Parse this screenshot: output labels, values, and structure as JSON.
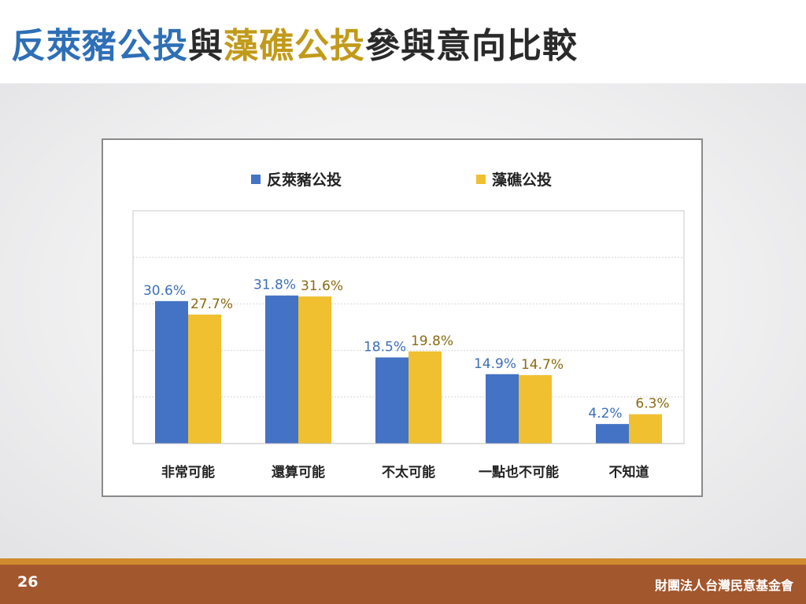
{
  "title": {
    "part1": "反萊豬公投",
    "part2": "與",
    "part3": "藻礁公投",
    "part4": "參與意向比較"
  },
  "colors": {
    "series1": "#4472C4",
    "series2": "#F0C030",
    "label1": "#3B6FB8",
    "label2": "#8A6A12",
    "accent": "#A3572D"
  },
  "chart_data": {
    "type": "bar",
    "categories": [
      "非常可能",
      "還算可能",
      "不太可能",
      "一點也不可能",
      "不知道"
    ],
    "series": [
      {
        "name": "反萊豬公投",
        "values": [
          30.6,
          31.8,
          18.5,
          14.9,
          4.2
        ],
        "labels": [
          "30.6%",
          "31.8%",
          "18.5%",
          "14.9%",
          "4.2%"
        ]
      },
      {
        "name": "藻礁公投",
        "values": [
          27.7,
          31.6,
          19.8,
          14.7,
          6.3
        ],
        "labels": [
          "27.7%",
          "31.6%",
          "19.8%",
          "14.7%",
          "6.3%"
        ]
      }
    ],
    "ylim": [
      0,
      50
    ],
    "grid": true,
    "legend_position": "top"
  },
  "footer": {
    "page_number": "26",
    "org": "財團法人台灣民意基金會"
  }
}
